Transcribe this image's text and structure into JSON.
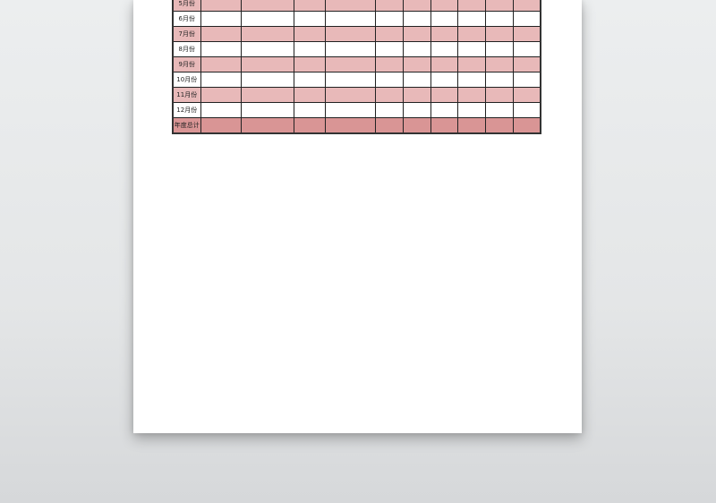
{
  "table": {
    "rows": [
      {
        "label": "5月份",
        "style": "pink"
      },
      {
        "label": "6月份",
        "style": "white"
      },
      {
        "label": "7月份",
        "style": "pink"
      },
      {
        "label": "8月份",
        "style": "white"
      },
      {
        "label": "9月份",
        "style": "pink"
      },
      {
        "label": "10月份",
        "style": "white"
      },
      {
        "label": "11月份",
        "style": "pink"
      },
      {
        "label": "12月份",
        "style": "white"
      },
      {
        "label": "年度总计",
        "style": "total"
      }
    ],
    "empty_columns": 10
  },
  "colors": {
    "pink_row": "#e8b9b9",
    "total_row": "#d99595",
    "background": "#e4e6e7"
  }
}
